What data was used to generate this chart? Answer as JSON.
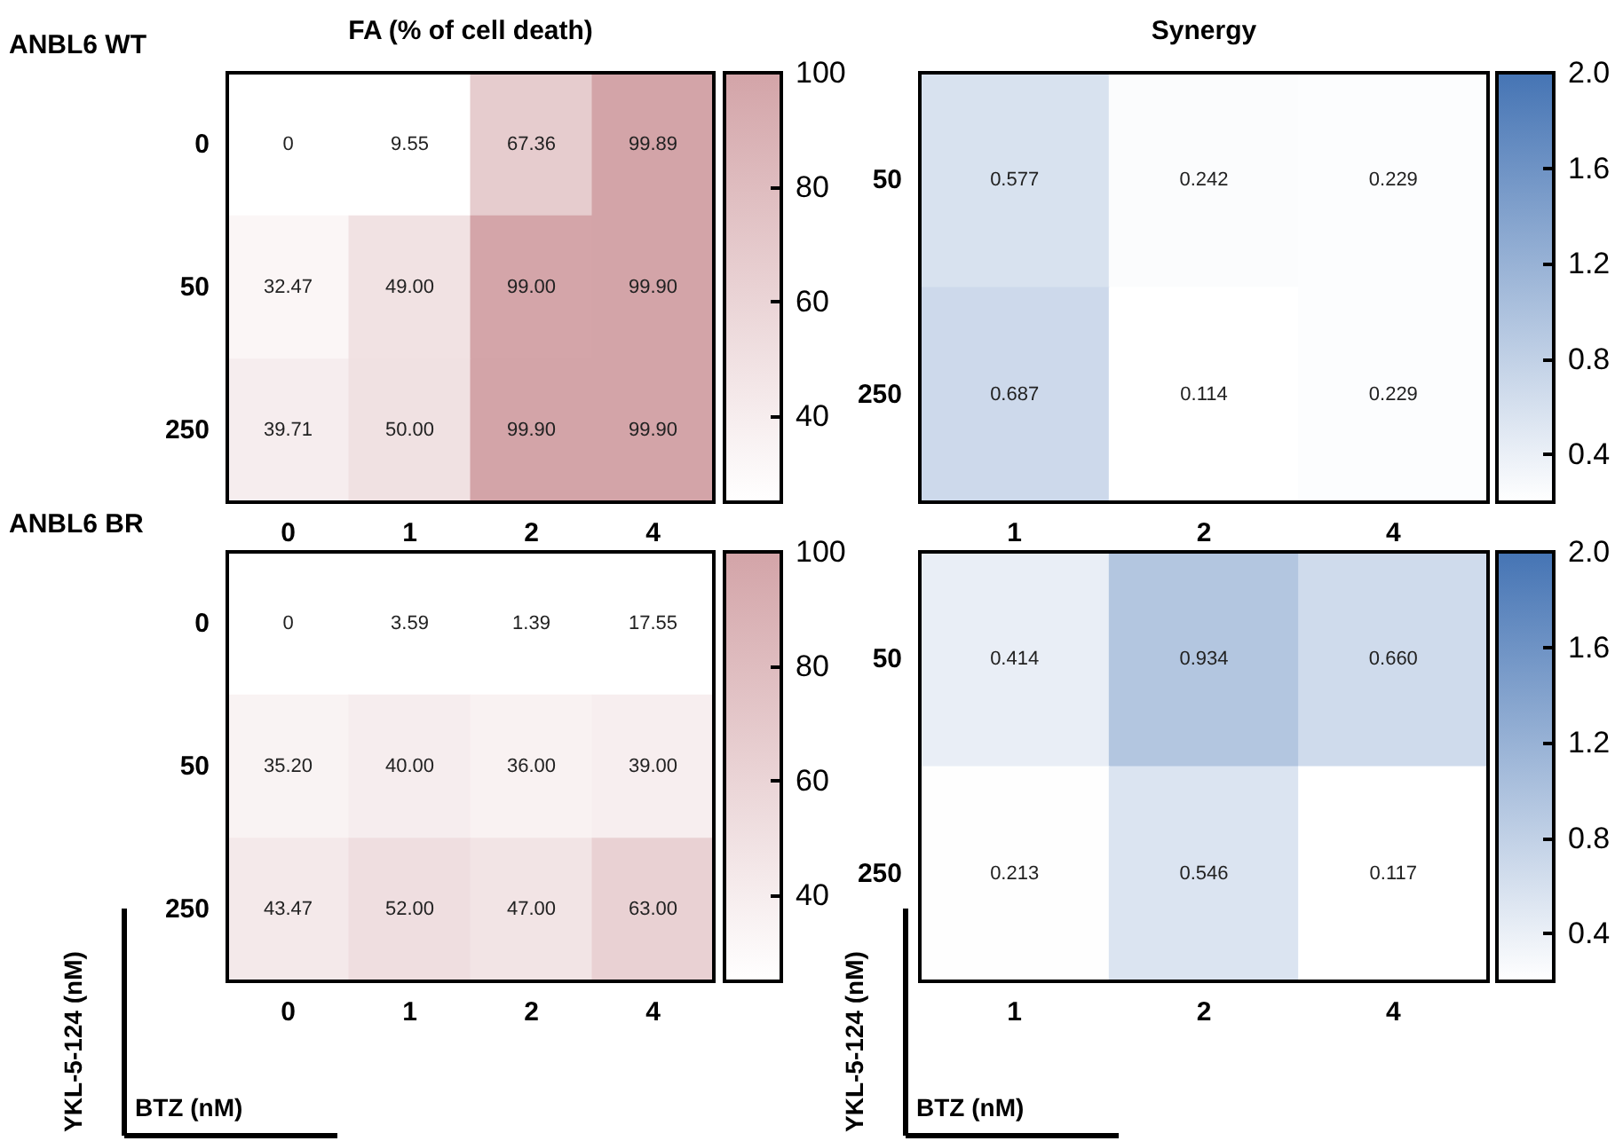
{
  "chart_data": [
    {
      "type": "heatmap",
      "title": "FA (% of cell death)",
      "annotations": [
        "ANBL6 WT"
      ],
      "categories": [
        "0",
        "1",
        "2",
        "4"
      ],
      "y_categories": [
        "0",
        "50",
        "250"
      ],
      "cells": [
        [
          0,
          9.55,
          67.36,
          99.89
        ],
        [
          32.47,
          49.0,
          99.0,
          99.9
        ],
        [
          39.71,
          50.0,
          99.9,
          99.9
        ]
      ],
      "cell_labels": [
        [
          "0",
          "9.55",
          "67.36",
          "99.89"
        ],
        [
          "32.47",
          "49.00",
          "99.00",
          "99.90"
        ],
        [
          "39.71",
          "50.00",
          "99.90",
          "99.90"
        ]
      ],
      "color": "#d3a4a8",
      "clim": [
        25,
        100
      ],
      "cticks": [
        40,
        60,
        80,
        100
      ]
    },
    {
      "type": "heatmap",
      "title": "Synergy",
      "categories": [
        "1",
        "2",
        "4"
      ],
      "y_categories": [
        "50",
        "250"
      ],
      "cells": [
        [
          0.577,
          0.242,
          0.229
        ],
        [
          0.687,
          0.114,
          0.229
        ]
      ],
      "cell_labels": [
        [
          "0.577",
          "0.242",
          "0.229"
        ],
        [
          "0.687",
          "0.114",
          "0.229"
        ]
      ],
      "color": "#4574b4",
      "clim": [
        0.2,
        2.0
      ],
      "cticks": [
        {
          "value": 0.4,
          "label": "0.4"
        },
        {
          "value": 0.8,
          "label": "0.8"
        },
        {
          "value": 1.2,
          "label": "1.2"
        },
        {
          "value": 1.6,
          "label": "1.6"
        },
        {
          "value": 2.0,
          "label": "2.0"
        }
      ]
    },
    {
      "type": "heatmap",
      "annotations": [
        "ANBL6 BR"
      ],
      "xlabel": "BTZ (nM)",
      "ylabel": "YKL-5-124 (nM)",
      "categories": [
        "0",
        "1",
        "2",
        "4"
      ],
      "y_categories": [
        "0",
        "50",
        "250"
      ],
      "cells": [
        [
          0,
          3.59,
          1.39,
          17.55
        ],
        [
          35.2,
          40.0,
          36.0,
          39.0
        ],
        [
          43.47,
          52.0,
          47.0,
          63.0
        ]
      ],
      "cell_labels": [
        [
          "0",
          "3.59",
          "1.39",
          "17.55"
        ],
        [
          "35.20",
          "40.00",
          "36.00",
          "39.00"
        ],
        [
          "43.47",
          "52.00",
          "47.00",
          "63.00"
        ]
      ],
      "color": "#d3a4a8",
      "clim": [
        25,
        100
      ],
      "cticks": [
        40,
        60,
        80,
        100
      ]
    },
    {
      "type": "heatmap",
      "xlabel": "BTZ (nM)",
      "ylabel": "YKL-5-124 (nM)",
      "categories": [
        "1",
        "2",
        "4"
      ],
      "y_categories": [
        "50",
        "250"
      ],
      "cells": [
        [
          0.414,
          0.934,
          0.66
        ],
        [
          0.213,
          0.546,
          0.117
        ]
      ],
      "cell_labels": [
        [
          "0.414",
          "0.934",
          "0.660"
        ],
        [
          "0.213",
          "0.546",
          "0.117"
        ]
      ],
      "color": "#4574b4",
      "clim": [
        0.2,
        2.0
      ],
      "cticks": [
        {
          "value": 0.4,
          "label": "0.4"
        },
        {
          "value": 0.8,
          "label": "0.8"
        },
        {
          "value": 1.2,
          "label": "1.2"
        },
        {
          "value": 1.6,
          "label": "1.6"
        },
        {
          "value": 2.0,
          "label": "2.0"
        }
      ]
    }
  ]
}
